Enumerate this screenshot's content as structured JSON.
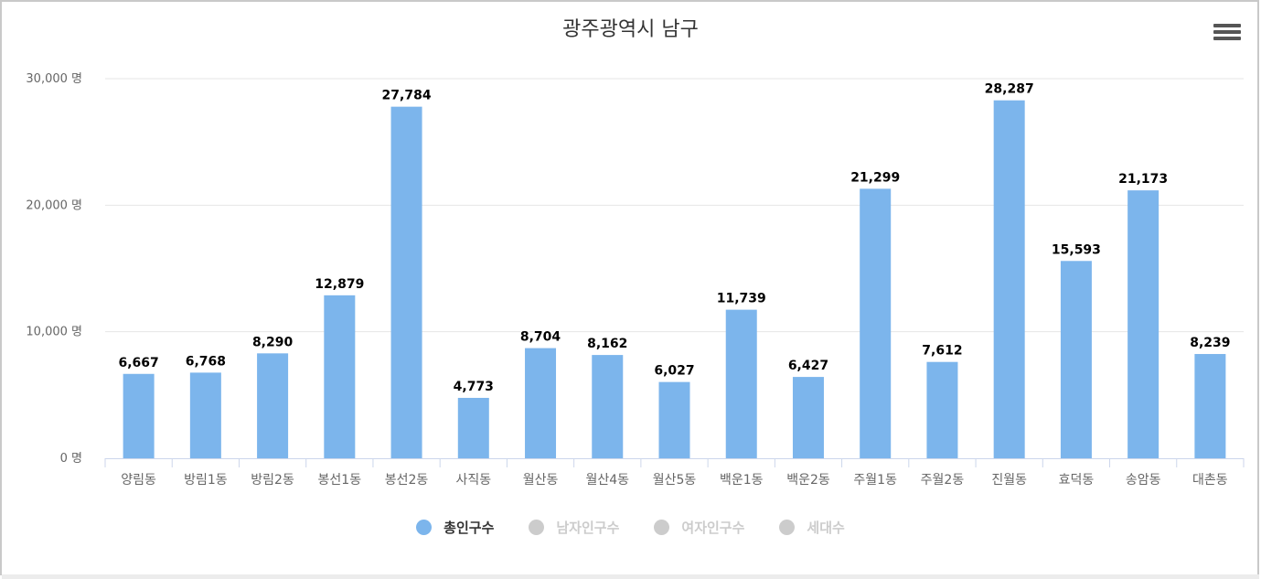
{
  "chart_data": {
    "type": "bar",
    "title": "광주광역시 남구",
    "categories": [
      "양림동",
      "방림1동",
      "방림2동",
      "봉선1동",
      "봉선2동",
      "사직동",
      "월산동",
      "월산4동",
      "월산5동",
      "백운1동",
      "백운2동",
      "주월1동",
      "주월2동",
      "진월동",
      "효덕동",
      "송암동",
      "대촌동"
    ],
    "series": [
      {
        "name": "총인구수",
        "values": [
          6667,
          6768,
          8290,
          12879,
          27784,
          4773,
          8704,
          8162,
          6027,
          11739,
          6427,
          21299,
          7612,
          28287,
          15593,
          21173,
          8239
        ],
        "visible": true,
        "color": "#7cb5ec"
      },
      {
        "name": "남자인구수",
        "visible": false,
        "color": "#cccccc"
      },
      {
        "name": "여자인구수",
        "visible": false,
        "color": "#cccccc"
      },
      {
        "name": "세대수",
        "visible": false,
        "color": "#cccccc"
      }
    ],
    "data_labels": [
      "6,667",
      "6,768",
      "8,290",
      "12,879",
      "27,784",
      "4,773",
      "8,704",
      "8,162",
      "6,027",
      "11,739",
      "6,427",
      "21,299",
      "7,612",
      "28,287",
      "15,593",
      "21,173",
      "8,239"
    ],
    "yticks": [
      0,
      10000,
      20000,
      30000
    ],
    "ytick_labels": [
      "0 명",
      "10,000 명",
      "20,000 명",
      "30,000 명"
    ],
    "ylim": [
      0,
      30000
    ],
    "grid": true,
    "legend_position": "bottom-center"
  },
  "colors": {
    "bar": "#7cb5ec",
    "inactive": "#cccccc",
    "grid": "#e6e6e6",
    "axis": "#ccd6eb",
    "text": "#333333"
  },
  "toolbar": {
    "menu_icon": "hamburger-menu-icon"
  }
}
